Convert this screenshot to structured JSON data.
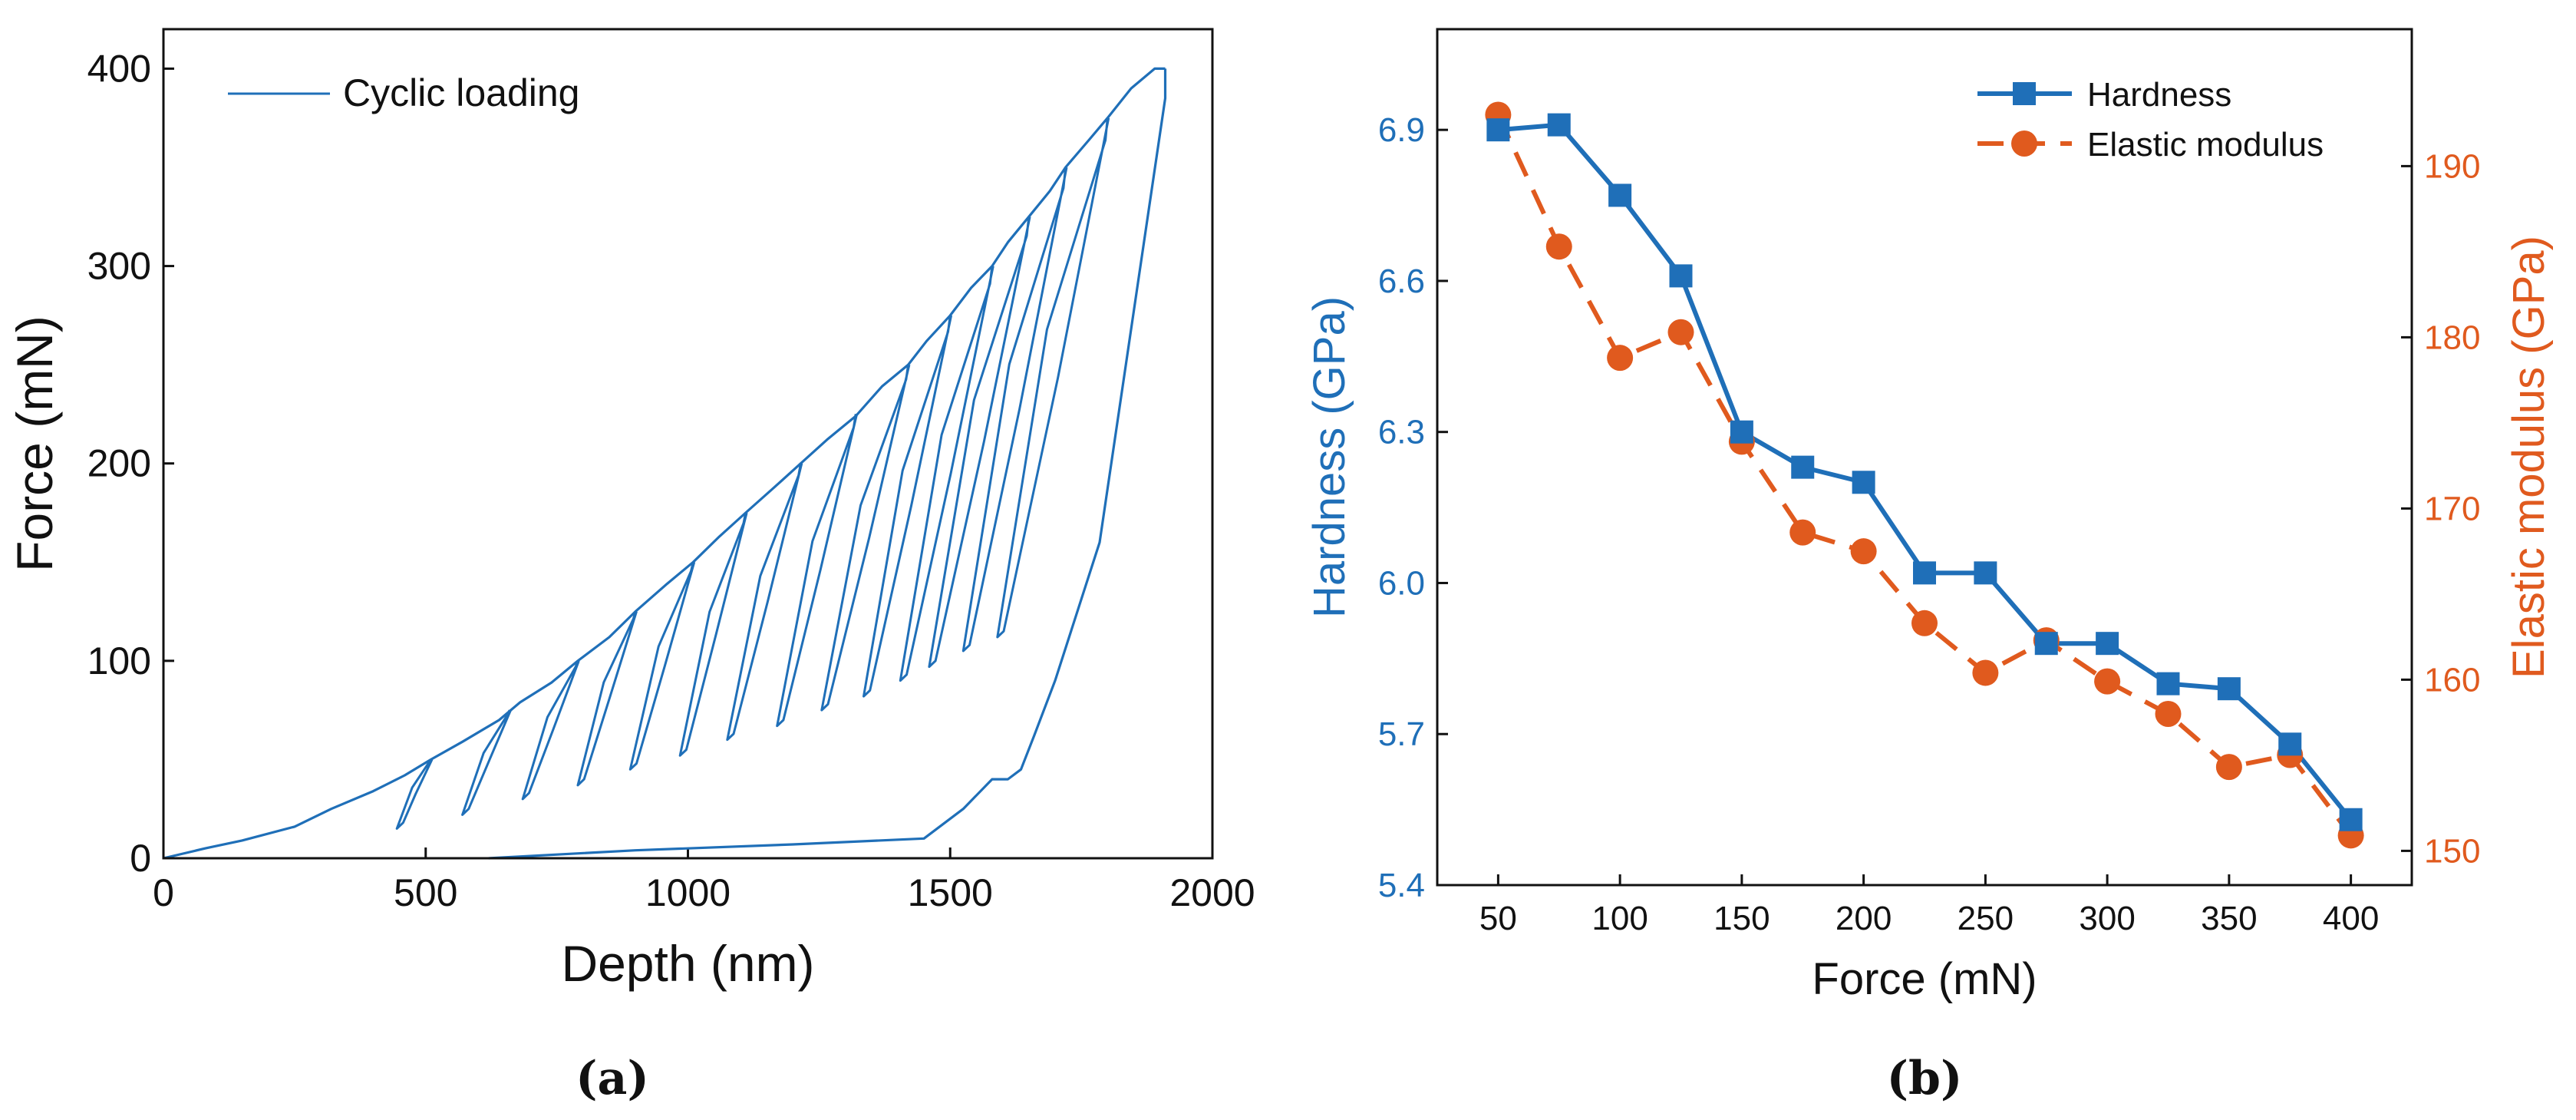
{
  "colors": {
    "blue": "#1f6fb8",
    "orange": "#e05a1e",
    "axis": "#111111",
    "text": "#111111"
  },
  "chart_data": [
    {
      "id": "a",
      "type": "line",
      "caption": "(a)",
      "xlabel": "Depth (nm)",
      "ylabel": "Force (mN)",
      "xlim": [
        0,
        2000
      ],
      "ylim": [
        0,
        420
      ],
      "xticks": [
        0,
        500,
        1000,
        1500,
        2000
      ],
      "yticks": [
        0,
        100,
        200,
        300,
        400
      ],
      "legend": {
        "position": "top-left",
        "label": "Cyclic loading"
      },
      "series": [
        {
          "name": "Cyclic loading",
          "loading_envelope": [
            [
              0,
              0
            ],
            [
              80,
              5
            ],
            [
              150,
              9
            ],
            [
              250,
              16
            ],
            [
              320,
              25
            ],
            [
              400,
              34
            ],
            [
              460,
              42
            ],
            [
              510,
              50
            ],
            [
              570,
              59
            ],
            [
              640,
              70
            ],
            [
              680,
              79
            ],
            [
              740,
              89
            ],
            [
              790,
              100
            ],
            [
              850,
              112
            ],
            [
              900,
              125
            ],
            [
              960,
              139
            ],
            [
              1010,
              150
            ],
            [
              1060,
              163
            ],
            [
              1110,
              175
            ],
            [
              1165,
              188
            ],
            [
              1215,
              200
            ],
            [
              1265,
              212
            ],
            [
              1320,
              224
            ],
            [
              1370,
              239
            ],
            [
              1420,
              250
            ],
            [
              1455,
              262
            ],
            [
              1500,
              275
            ],
            [
              1540,
              289
            ],
            [
              1580,
              300
            ],
            [
              1610,
              312
            ],
            [
              1650,
              325
            ],
            [
              1690,
              338
            ],
            [
              1720,
              350
            ],
            [
              1765,
              364
            ],
            [
              1800,
              375
            ],
            [
              1845,
              390
            ],
            [
              1890,
              400
            ],
            [
              1910,
              400
            ]
          ],
          "cycles": [
            {
              "peak": 50,
              "peak_depth": 510,
              "min_force": 15,
              "min_depth": 445
            },
            {
              "peak": 75,
              "peak_depth": 660,
              "min_force": 22,
              "min_depth": 570
            },
            {
              "peak": 100,
              "peak_depth": 790,
              "min_force": 30,
              "min_depth": 685
            },
            {
              "peak": 125,
              "peak_depth": 900,
              "min_force": 37,
              "min_depth": 790
            },
            {
              "peak": 150,
              "peak_depth": 1010,
              "min_force": 45,
              "min_depth": 890
            },
            {
              "peak": 175,
              "peak_depth": 1110,
              "min_force": 52,
              "min_depth": 985
            },
            {
              "peak": 200,
              "peak_depth": 1215,
              "min_force": 60,
              "min_depth": 1075
            },
            {
              "peak": 225,
              "peak_depth": 1320,
              "min_force": 67,
              "min_depth": 1170
            },
            {
              "peak": 250,
              "peak_depth": 1420,
              "min_force": 75,
              "min_depth": 1255
            },
            {
              "peak": 275,
              "peak_depth": 1500,
              "min_force": 82,
              "min_depth": 1335
            },
            {
              "peak": 300,
              "peak_depth": 1580,
              "min_force": 90,
              "min_depth": 1405
            },
            {
              "peak": 325,
              "peak_depth": 1650,
              "min_force": 97,
              "min_depth": 1460
            },
            {
              "peak": 350,
              "peak_depth": 1720,
              "min_force": 105,
              "min_depth": 1525
            },
            {
              "peak": 375,
              "peak_depth": 1800,
              "min_force": 112,
              "min_depth": 1590
            }
          ],
          "final_unloading": [
            [
              1910,
              400
            ],
            [
              1910,
              385
            ],
            [
              1785,
              160
            ],
            [
              1700,
              90
            ],
            [
              1660,
              62
            ],
            [
              1635,
              45
            ],
            [
              1610,
              40
            ],
            [
              1580,
              40
            ],
            [
              1525,
              25
            ],
            [
              1450,
              10
            ],
            [
              1200,
              7
            ],
            [
              900,
              4
            ],
            [
              620,
              0
            ]
          ]
        }
      ]
    },
    {
      "id": "b",
      "type": "line",
      "caption": "(b)",
      "xlabel": "Force (mN)",
      "ylabel": "Hardness (GPa)",
      "ylabel_right": "Elastic modulus (GPa)",
      "xlim": [
        25,
        425
      ],
      "ylim": [
        5.4,
        7.1
      ],
      "ylim_right": [
        148,
        198
      ],
      "xticks": [
        50,
        100,
        150,
        200,
        250,
        300,
        350,
        400
      ],
      "yticks": [
        "5.4",
        "5.7",
        "6.0",
        "6.3",
        "6.6",
        "6.9"
      ],
      "yticks_right": [
        150,
        160,
        170,
        180,
        190
      ],
      "legend": {
        "position": "top-right"
      },
      "x": [
        50,
        75,
        100,
        125,
        150,
        175,
        200,
        225,
        250,
        275,
        300,
        325,
        350,
        375,
        400
      ],
      "series": [
        {
          "name": "Hardness",
          "axis": "left",
          "marker": "square",
          "line": "solid",
          "values": [
            6.9,
            6.91,
            6.77,
            6.61,
            6.3,
            6.23,
            6.2,
            6.02,
            6.02,
            5.88,
            5.88,
            5.8,
            5.79,
            5.68,
            5.53
          ]
        },
        {
          "name": "Elastic modulus",
          "axis": "right",
          "marker": "circle",
          "line": "dashed",
          "values": [
            193,
            185.3,
            178.8,
            180.3,
            173.9,
            168.6,
            167.5,
            163.3,
            160.4,
            162.3,
            159.9,
            158.0,
            154.9,
            155.6,
            150.9
          ]
        }
      ]
    }
  ]
}
